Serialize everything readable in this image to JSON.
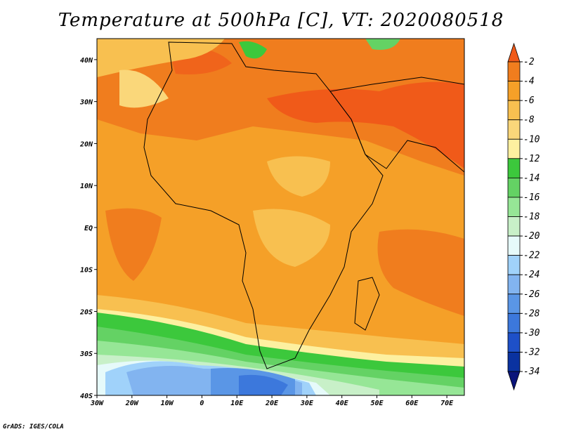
{
  "title": "Temperature at 500hPa [C], VT: 2020080518",
  "credit": "GrADS: IGES/COLA",
  "axes": {
    "lon_ticks": [
      "30W",
      "20W",
      "10W",
      "0",
      "10E",
      "20E",
      "30E",
      "40E",
      "50E",
      "60E",
      "70E"
    ],
    "lat_ticks": [
      "40N",
      "30N",
      "20N",
      "10N",
      "EQ",
      "10S",
      "20S",
      "30S",
      "40S"
    ],
    "lon_range": [
      -30,
      75
    ],
    "lat_range": [
      -40,
      45
    ]
  },
  "colorbar": {
    "labels": [
      "-2",
      "-4",
      "-6",
      "-8",
      "-10",
      "-12",
      "-14",
      "-16",
      "-18",
      "-20",
      "-22",
      "-24",
      "-26",
      "-28",
      "-30",
      "-32",
      "-34"
    ],
    "colors": [
      "#f05a19",
      "#f07d1e",
      "#f5a028",
      "#f8c050",
      "#fad77a",
      "#fdf0a0",
      "#3cc83c",
      "#64d264",
      "#96e696",
      "#c8f0c8",
      "#e6fafa",
      "#a0d2fa",
      "#82b4f0",
      "#5a96e6",
      "#3c78dc",
      "#1e50c8",
      "#0a32a0",
      "#0a147a"
    ]
  }
}
